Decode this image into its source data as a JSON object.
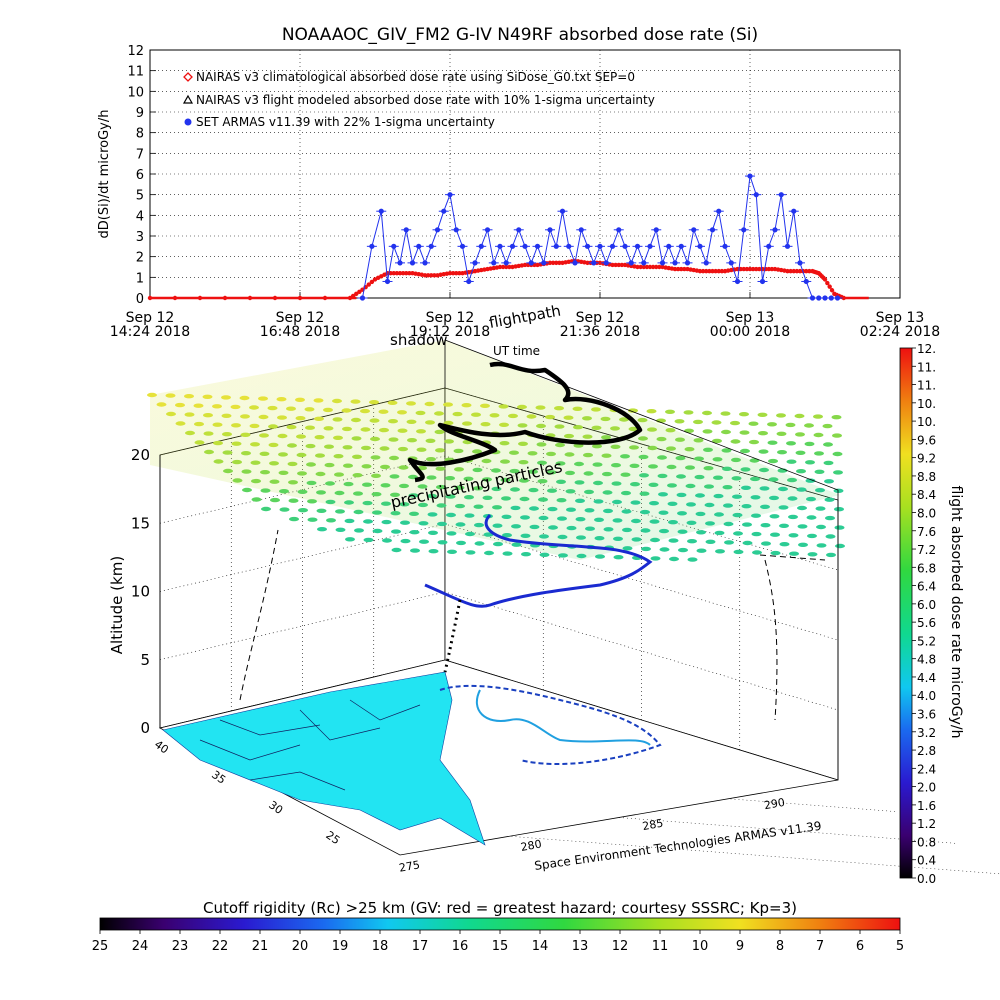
{
  "title": "NOAAAOC_GIV_FM2 G-IV    N49RF   absorbed dose rate (Si)",
  "colors": {
    "nairas_clim": "#ee1111",
    "armas": "#2233ee",
    "axis": "#000000"
  },
  "chart_data": [
    {
      "type": "scatter",
      "ylabel": "dD(Si)/dt microGy/h",
      "xlabel": "",
      "ylim": [
        0,
        12
      ],
      "yticks": [
        "0",
        "1",
        "2",
        "3",
        "4",
        "5",
        "6",
        "7",
        "8",
        "9",
        "10",
        "11",
        "12"
      ],
      "xtick_labels": [
        {
          "line1": "Sep 12",
          "line2": "14:24 2018"
        },
        {
          "line1": "Sep 12",
          "line2": "16:48 2018"
        },
        {
          "line1": "Sep 12",
          "line2": "19:12 2018"
        },
        {
          "line1": "Sep 12",
          "line2": "21:36 2018"
        },
        {
          "line1": "Sep 13",
          "line2": "00:00 2018"
        },
        {
          "line1": "Sep 13",
          "line2": "02:24 2018"
        }
      ],
      "xlim_hours": [
        14.4,
        26.4
      ],
      "grid": true,
      "legend_placement": "top-left",
      "legend": [
        {
          "marker": "diamond",
          "color": "#ee1111",
          "text": "NAIRAS v3 climatological absorbed dose rate using SiDose_G0.txt SEP=0"
        },
        {
          "marker": "triangle",
          "color": "#000000",
          "text": "NAIRAS v3 flight modeled absorbed dose rate with 10% 1-sigma uncertainty"
        },
        {
          "marker": "circle",
          "color": "#2233ee",
          "text": "SET ARMAS v11.39 with 22% 1-sigma uncertainty"
        }
      ],
      "series": [
        {
          "name": "NAIRAS v3 climatological absorbed dose rate using SiDose_G0.txt SEP=0",
          "x_hours": [
            14.4,
            16.0,
            17.6,
            17.8,
            18.0,
            18.2,
            18.4,
            18.6,
            18.8,
            19.0,
            19.2,
            19.4,
            19.6,
            19.8,
            20.0,
            20.2,
            20.4,
            20.6,
            20.8,
            21.0,
            21.2,
            21.4,
            21.6,
            21.8,
            22.0,
            22.2,
            22.4,
            22.6,
            22.8,
            23.0,
            23.2,
            23.4,
            23.6,
            23.8,
            24.0,
            24.2,
            24.4,
            24.6,
            24.8,
            25.0,
            25.1,
            25.2,
            25.35,
            25.5
          ],
          "values": [
            0,
            0,
            0,
            0.4,
            0.9,
            1.2,
            1.2,
            1.2,
            1.1,
            1.1,
            1.2,
            1.2,
            1.3,
            1.4,
            1.5,
            1.5,
            1.6,
            1.6,
            1.7,
            1.7,
            1.8,
            1.7,
            1.7,
            1.6,
            1.6,
            1.5,
            1.5,
            1.5,
            1.4,
            1.4,
            1.3,
            1.3,
            1.3,
            1.4,
            1.4,
            1.4,
            1.4,
            1.3,
            1.3,
            1.3,
            1.2,
            0.9,
            0.2,
            0
          ]
        },
        {
          "name": "SET ARMAS v11.39 with 22% 1-sigma uncertainty",
          "x_hours": [
            17.8,
            17.95,
            18.1,
            18.2,
            18.3,
            18.4,
            18.5,
            18.6,
            18.7,
            18.8,
            18.9,
            19.0,
            19.1,
            19.2,
            19.3,
            19.4,
            19.5,
            19.6,
            19.7,
            19.8,
            19.9,
            20.0,
            20.1,
            20.2,
            20.3,
            20.4,
            20.5,
            20.6,
            20.7,
            20.8,
            20.9,
            21.0,
            21.1,
            21.2,
            21.3,
            21.4,
            21.5,
            21.6,
            21.7,
            21.8,
            21.9,
            22.0,
            22.1,
            22.2,
            22.3,
            22.4,
            22.5,
            22.6,
            22.7,
            22.8,
            22.9,
            23.0,
            23.1,
            23.2,
            23.3,
            23.4,
            23.5,
            23.6,
            23.7,
            23.8,
            23.9,
            24.0,
            24.1,
            24.2,
            24.3,
            24.4,
            24.5,
            24.6,
            24.7,
            24.8,
            24.9,
            25.0,
            25.1,
            25.2,
            25.3,
            25.4
          ],
          "values": [
            0,
            2.5,
            4.2,
            0.8,
            2.5,
            1.7,
            3.3,
            1.7,
            2.5,
            1.7,
            2.5,
            3.3,
            4.2,
            5.0,
            3.3,
            2.5,
            0.8,
            1.7,
            2.5,
            3.3,
            1.7,
            2.5,
            1.7,
            2.5,
            3.3,
            2.5,
            1.7,
            2.5,
            1.7,
            3.3,
            2.5,
            4.2,
            2.5,
            1.7,
            3.3,
            2.5,
            1.7,
            2.5,
            1.7,
            2.5,
            3.3,
            2.5,
            1.7,
            2.5,
            1.7,
            2.5,
            3.3,
            1.7,
            2.5,
            1.7,
            2.5,
            1.7,
            3.3,
            2.5,
            1.7,
            3.3,
            4.2,
            2.5,
            1.7,
            0.8,
            3.3,
            5.9,
            5.0,
            0.8,
            2.5,
            3.3,
            5.0,
            2.5,
            4.2,
            1.7,
            0.8,
            0,
            0,
            0,
            0,
            0
          ]
        }
      ]
    },
    {
      "type": "scatter",
      "zlabel": "Altitude (km)",
      "zticks": [
        "0",
        "5",
        "10",
        "15",
        "20"
      ],
      "lat_ticks": [
        "40",
        "35",
        "30",
        "25"
      ],
      "lon_ticks": [
        "275",
        "280",
        "285",
        "290"
      ],
      "annotations": [
        "shadow",
        "flightpath",
        "UT time",
        "precipitating particles"
      ],
      "credit": "Space Environment Technologies ARMAS v11.39",
      "colorbar": {
        "label": "flight absorbed dose rate microGy/h",
        "ticks": [
          "0.0",
          "0.4",
          "0.8",
          "1.2",
          "1.6",
          "2.0",
          "2.4",
          "2.8",
          "3.2",
          "3.6",
          "4.0",
          "4.4",
          "4.8",
          "5.2",
          "5.6",
          "6.0",
          "6.4",
          "6.8",
          "7.2",
          "7.6",
          "8.0",
          "8.4",
          "8.8",
          "9.2",
          "9.6",
          "10.",
          "10.",
          "11.",
          "11.",
          "12."
        ],
        "range": [
          0,
          12
        ]
      }
    },
    {
      "type": "heatmap",
      "title": "Cutoff rigidity (Rc) >25 km (GV: red = greatest hazard; courtesy SSSRC; Kp=3)",
      "ticks": [
        "25",
        "24",
        "23",
        "22",
        "21",
        "20",
        "19",
        "18",
        "17",
        "16",
        "15",
        "14",
        "13",
        "12",
        "11",
        "10",
        "9",
        "8",
        "7",
        "6",
        "5"
      ],
      "range": [
        25,
        5
      ]
    }
  ]
}
